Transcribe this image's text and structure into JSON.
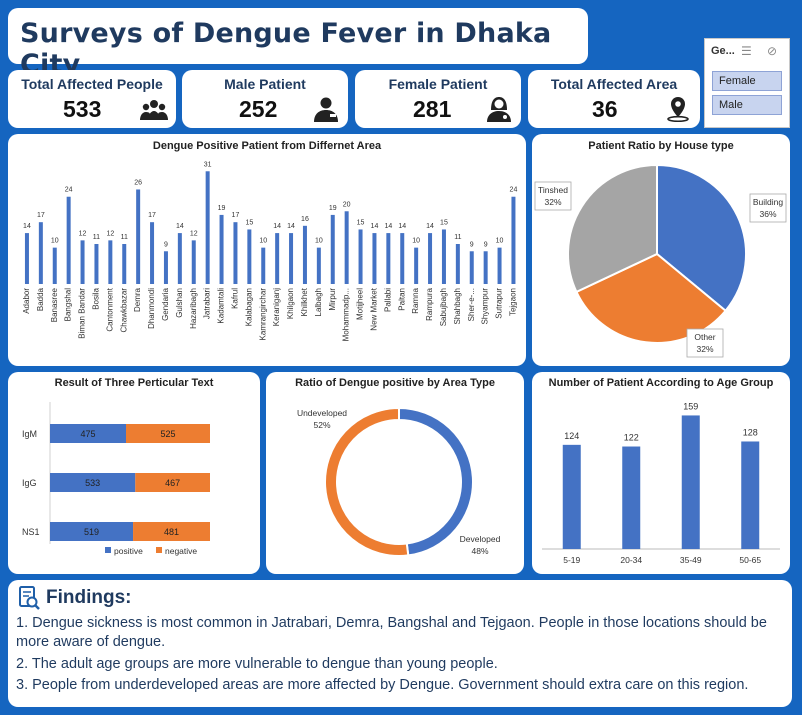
{
  "dashboard": {
    "title": "Surveys of Dengue Fever in Dhaka City"
  },
  "slicer": {
    "header": "Ge...",
    "items": [
      "Female",
      "Male"
    ]
  },
  "kpis": [
    {
      "label": "Total Affected People",
      "value": "533",
      "icon": "people-group-icon"
    },
    {
      "label": "Male Patient",
      "value": "252",
      "icon": "male-user-icon"
    },
    {
      "label": "Female Patient",
      "value": "281",
      "icon": "female-user-icon"
    },
    {
      "label": "Total Affected Area",
      "value": "36",
      "icon": "map-pin-icon"
    }
  ],
  "colors": {
    "blue": "#4472c4",
    "orange": "#ed7d31",
    "gray": "#a5a5a5",
    "title": "#1f3a5f",
    "background": "#1565c0"
  },
  "chart_data": [
    {
      "id": "area",
      "type": "bar",
      "title": "Dengue Positive Patient from Differnet Area",
      "categories": [
        "Adabor",
        "Badda",
        "Banasree",
        "Bangshal",
        "Biman Bandar",
        "Bosila",
        "Cantonment",
        "Chawkbazar",
        "Demra",
        "Dhanmondi",
        "Gendaria",
        "Gulshan",
        "Hazaribagh",
        "Jatrabari",
        "Kadamtali",
        "Kafrul",
        "Kalabagan",
        "Kamrangirchar",
        "Keraniganj",
        "Khilgaon",
        "Khilkhet",
        "Lalbagh",
        "Mirpur",
        "Mohammadp...",
        "Motijheel",
        "New Market",
        "Pallabi",
        "Paltan",
        "Ramna",
        "Rampura",
        "Sabujbagh",
        "Shahbagh",
        "Sher-e-...",
        "Shyampur",
        "Sutrapur",
        "Tejgaon"
      ],
      "values": [
        14,
        17,
        10,
        24,
        12,
        11,
        12,
        11,
        26,
        17,
        9,
        14,
        12,
        31,
        19,
        17,
        15,
        10,
        14,
        14,
        16,
        10,
        19,
        20,
        15,
        14,
        14,
        14,
        10,
        14,
        15,
        11,
        9,
        9,
        10,
        24
      ],
      "ylim": [
        0,
        33
      ]
    },
    {
      "id": "house",
      "type": "pie",
      "title": "Patient Ratio by House type",
      "labels": [
        "Building",
        "Other",
        "Tinshed"
      ],
      "values": [
        36,
        32,
        32
      ],
      "value_labels": [
        "36%",
        "32%",
        "32%"
      ],
      "colors": [
        "#4472c4",
        "#ed7d31",
        "#a5a5a5"
      ]
    },
    {
      "id": "tests",
      "type": "bar",
      "orientation": "horizontal-stacked",
      "title": "Result of Three Perticular Text",
      "categories": [
        "IgM",
        "IgG",
        "NS1"
      ],
      "series": [
        {
          "name": "positive",
          "values": [
            475,
            533,
            519
          ],
          "color": "#4472c4"
        },
        {
          "name": "negative",
          "values": [
            525,
            467,
            481
          ],
          "color": "#ed7d31"
        }
      ],
      "legend": "bottom"
    },
    {
      "id": "areatype",
      "type": "pie",
      "variant": "doughnut",
      "title": "Ratio of Dengue positive by Area Type",
      "labels": [
        "Developed",
        "Undeveloped"
      ],
      "values": [
        48,
        52
      ],
      "value_labels": [
        "48%",
        "52%"
      ],
      "colors": [
        "#4472c4",
        "#ed7d31"
      ]
    },
    {
      "id": "age",
      "type": "bar",
      "title": "Number of Patient According to Age Group",
      "categories": [
        "5-19",
        "20-34",
        "35-49",
        "50-65"
      ],
      "values": [
        124,
        122,
        159,
        128
      ],
      "ylim": [
        0,
        175
      ]
    }
  ],
  "findings": {
    "heading": "Findings:",
    "items": [
      "1. Dengue sickness is most common in Jatrabari, Demra, Bangshal and Tejgaon. People in those locations should be more aware of dengue.",
      "2. The adult age groups are more vulnerable to dengue than young people.",
      "3. People from underdeveloped areas are more affected by Dengue. Government should extra care on this region."
    ]
  }
}
